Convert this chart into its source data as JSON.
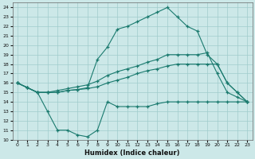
{
  "xlabel": "Humidex (Indice chaleur)",
  "bg_color": "#cce8e8",
  "line_color": "#1a7a6e",
  "grid_color": "#a0cccc",
  "xlim": [
    -0.5,
    23.5
  ],
  "ylim": [
    10,
    24.5
  ],
  "xticks": [
    0,
    1,
    2,
    3,
    4,
    5,
    6,
    7,
    8,
    9,
    10,
    11,
    12,
    13,
    14,
    15,
    16,
    17,
    18,
    19,
    20,
    21,
    22,
    23
  ],
  "yticks": [
    10,
    11,
    12,
    13,
    14,
    15,
    16,
    17,
    18,
    19,
    20,
    21,
    22,
    23,
    24
  ],
  "series": {
    "line1_bottom": {
      "x": [
        0,
        1,
        2,
        3,
        4,
        5,
        6,
        7,
        8,
        9,
        10,
        11,
        12,
        13,
        14,
        15,
        16,
        17,
        18,
        19,
        20,
        21,
        22,
        23
      ],
      "y": [
        16,
        15.5,
        15,
        13,
        11,
        11,
        10.5,
        10.3,
        11,
        14,
        13.5,
        13.5,
        13.5,
        13.5,
        13.8,
        14,
        14,
        14,
        14,
        14,
        14,
        14,
        14,
        14
      ]
    },
    "line2_low": {
      "x": [
        0,
        1,
        2,
        3,
        4,
        5,
        6,
        7,
        8,
        9,
        10,
        11,
        12,
        13,
        14,
        15,
        16,
        17,
        18,
        19,
        20,
        21,
        22,
        23
      ],
      "y": [
        16,
        15.5,
        15,
        15,
        15,
        15.2,
        15.3,
        15.4,
        15.6,
        16,
        16.3,
        16.6,
        17,
        17.3,
        17.5,
        17.8,
        18,
        18,
        18,
        18,
        18,
        16,
        15,
        14
      ]
    },
    "line3_mid": {
      "x": [
        0,
        1,
        2,
        3,
        4,
        5,
        6,
        7,
        8,
        9,
        10,
        11,
        12,
        13,
        14,
        15,
        16,
        17,
        18,
        19,
        20,
        21,
        22,
        23
      ],
      "y": [
        16,
        15.5,
        15,
        15,
        15.2,
        15.4,
        15.6,
        15.8,
        16.2,
        16.8,
        17.2,
        17.5,
        17.8,
        18.2,
        18.5,
        19,
        19,
        19,
        19,
        19.2,
        17,
        15,
        14.5,
        14
      ]
    },
    "line4_top": {
      "x": [
        0,
        1,
        2,
        3,
        4,
        5,
        6,
        7,
        8,
        9,
        10,
        11,
        12,
        13,
        14,
        15,
        16,
        17,
        18,
        19,
        20,
        21,
        22,
        23
      ],
      "y": [
        16,
        15.5,
        15,
        15,
        15,
        15.2,
        15.3,
        15.5,
        18.5,
        19.8,
        21.7,
        22,
        22.5,
        23,
        23.5,
        24,
        23,
        22,
        21.5,
        19,
        18,
        16,
        15,
        14
      ]
    }
  }
}
